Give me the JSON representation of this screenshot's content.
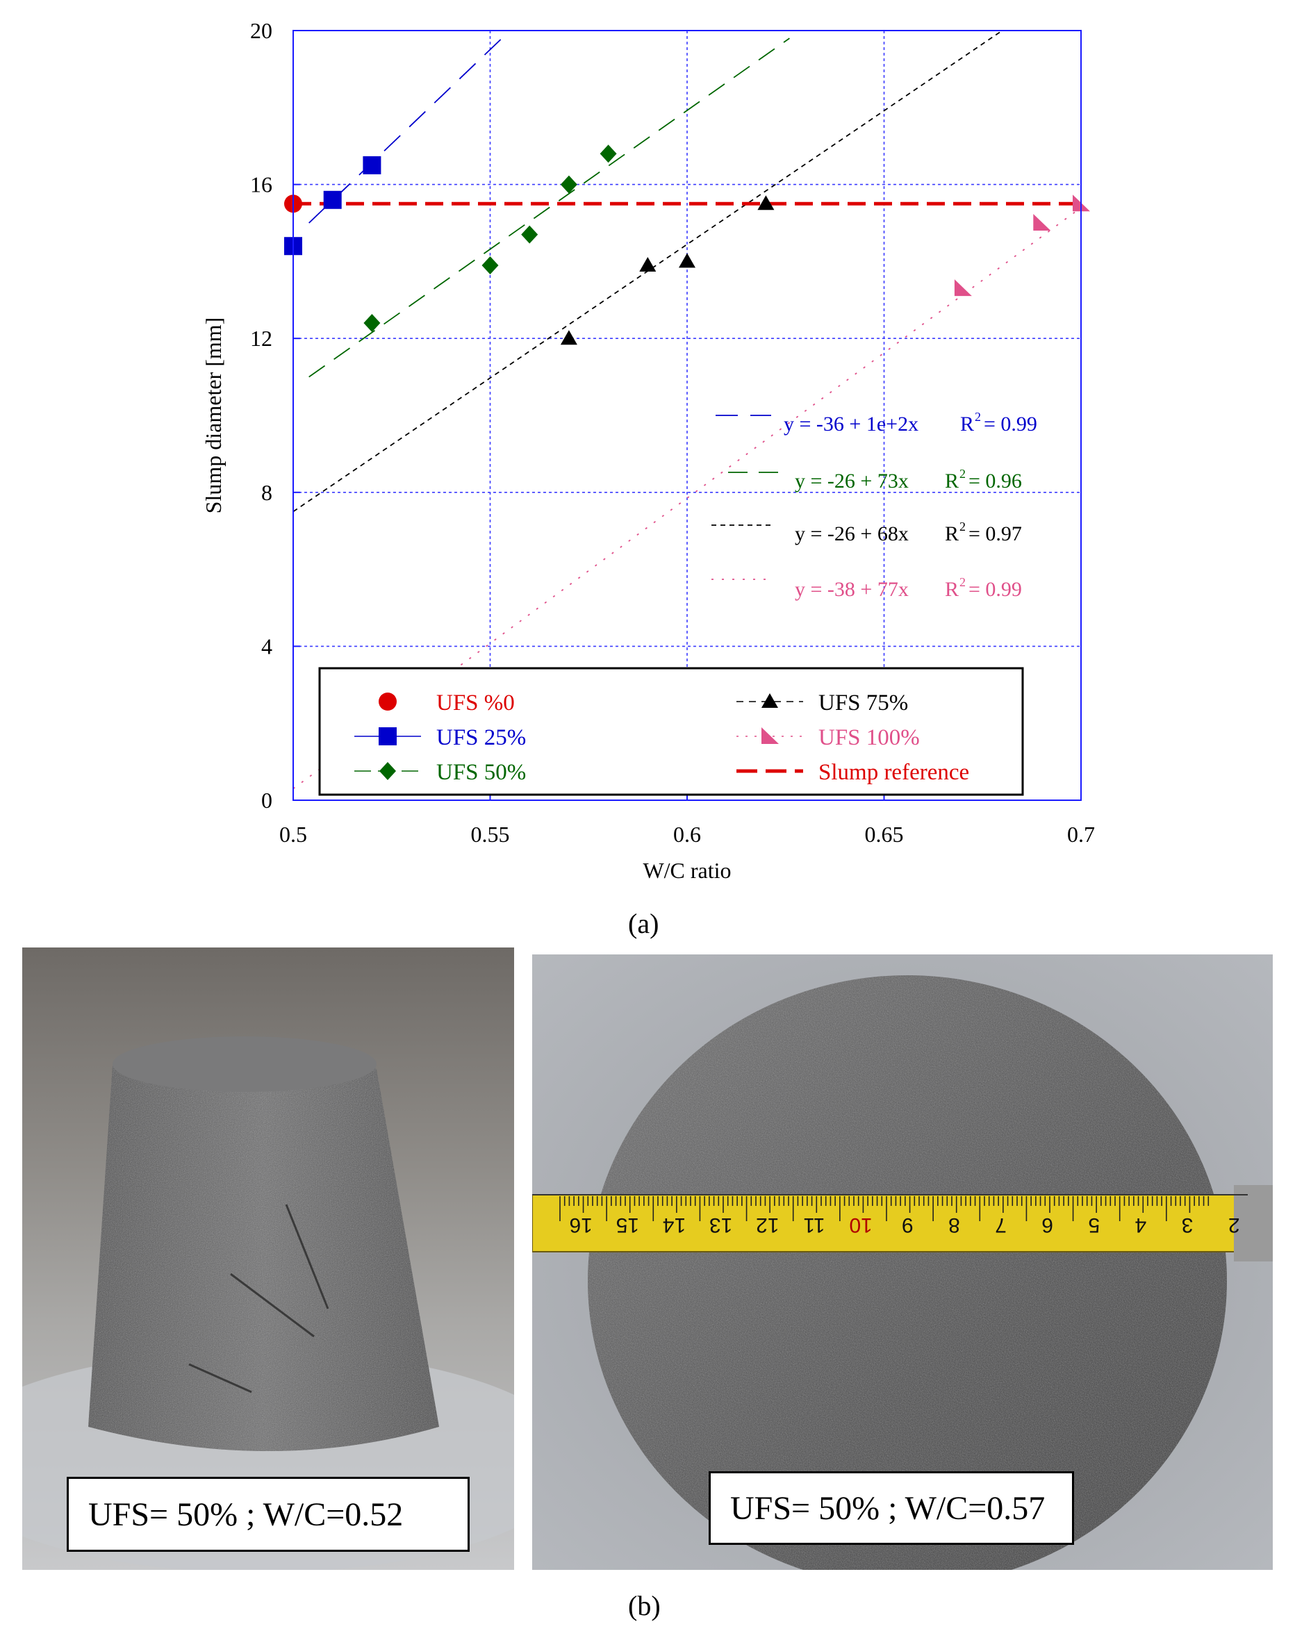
{
  "chart_data": {
    "type": "scatter",
    "xlabel": "W/C ratio",
    "ylabel": "Slump diameter [mm]",
    "xlim": [
      0.5,
      0.7
    ],
    "ylim": [
      0,
      20
    ],
    "xticks": [
      "0.5",
      "0.55",
      "0.6",
      "0.65",
      "0.7"
    ],
    "yticks": [
      "0",
      "4",
      "8",
      "12",
      "16",
      "20"
    ],
    "grid": true,
    "legend_position": "bottom",
    "series": [
      {
        "name": "UFS %0",
        "color": "#dd0000",
        "marker": "circle",
        "x": [
          0.5
        ],
        "y": [
          15.5
        ]
      },
      {
        "name": "UFS 25%",
        "color": "#0000cc",
        "marker": "square",
        "x": [
          0.5,
          0.51,
          0.52
        ],
        "y": [
          14.4,
          15.6,
          16.5
        ]
      },
      {
        "name": "UFS 50%",
        "color": "#006600",
        "marker": "diamond",
        "x": [
          0.52,
          0.55,
          0.56,
          0.57,
          0.58
        ],
        "y": [
          12.4,
          13.9,
          14.7,
          16.0,
          16.8
        ]
      },
      {
        "name": "UFS 75%",
        "color": "#000000",
        "marker": "triangle",
        "x": [
          0.57,
          0.59,
          0.6,
          0.62
        ],
        "y": [
          12.0,
          13.9,
          14.0,
          15.5
        ]
      },
      {
        "name": "UFS 100%",
        "color": "#e0508a",
        "marker": "right-triangle",
        "x": [
          0.67,
          0.69,
          0.7
        ],
        "y": [
          13.3,
          15.0,
          15.5
        ]
      },
      {
        "name": "Slump reference",
        "color": "#dd0000",
        "marker": "none",
        "x": [
          0.5,
          0.7
        ],
        "y": [
          15.5,
          15.5
        ]
      }
    ],
    "trendlines": [
      {
        "color": "#0000cc",
        "dash": "32 18",
        "x1": 0.504,
        "y1": 15.0,
        "x2": 0.553,
        "y2": 19.8,
        "equation": "y = -36 + 1e+2x",
        "r2_label": "R",
        "r2_sup": "2",
        "r2_value": "= 0.99"
      },
      {
        "color": "#006600",
        "dash": "28 16",
        "x1": 0.504,
        "y1": 11.0,
        "x2": 0.626,
        "y2": 19.8,
        "equation": "y = -26 + 73x",
        "r2_label": "R",
        "r2_sup": "2",
        "r2_value": "= 0.96"
      },
      {
        "color": "#000000",
        "dash": "7 6",
        "x1": 0.5,
        "y1": 7.5,
        "x2": 0.68,
        "y2": 20.0,
        "equation": "y = -26 + 68x",
        "r2_label": "R",
        "r2_sup": "2",
        "r2_value": "= 0.97"
      },
      {
        "color": "#e0508a",
        "dash": "3 12",
        "x1": 0.5,
        "y1": 0.3,
        "x2": 0.7,
        "y2": 15.4,
        "equation": "y = -38 + 77x",
        "r2_label": "R",
        "r2_sup": "2",
        "r2_value": "= 0.99"
      }
    ]
  },
  "panel_a_label": "(a)",
  "panel_b_label": "(b)",
  "photos": [
    {
      "caption": "UFS= 50% ; W/C=0.52"
    },
    {
      "caption": "UFS= 50% ; W/C=0.57"
    }
  ],
  "tape_numbers": [
    "16",
    "15",
    "14",
    "13",
    "12",
    "11",
    "10",
    "9",
    "8",
    "7",
    "6",
    "5",
    "4",
    "3",
    "2"
  ]
}
